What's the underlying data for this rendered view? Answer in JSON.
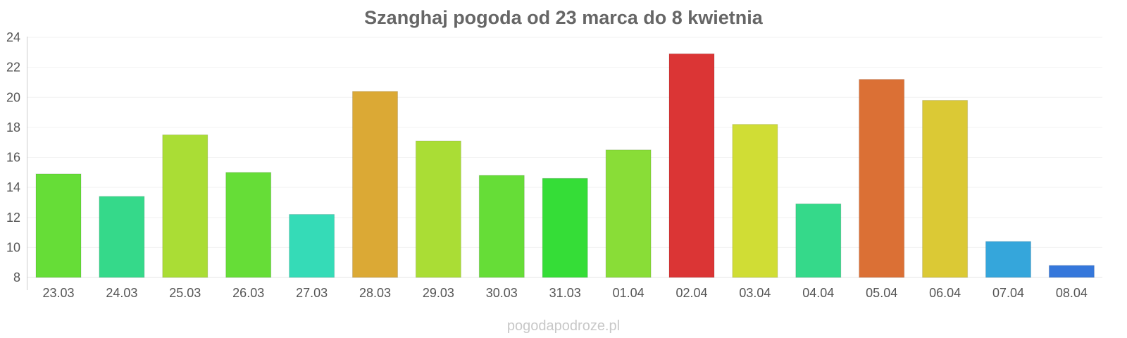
{
  "chart_data": {
    "type": "bar",
    "title": "Szanghaj pogoda od 23 marca do 8 kwietnia",
    "xlabel": "",
    "ylabel": "",
    "ylim": [
      8,
      24
    ],
    "yticks": [
      8,
      10,
      12,
      14,
      16,
      18,
      20,
      22,
      24
    ],
    "grid": true,
    "legend": "none",
    "categories": [
      "23.03",
      "24.03",
      "25.03",
      "26.03",
      "27.03",
      "28.03",
      "29.03",
      "30.03",
      "31.03",
      "01.04",
      "02.04",
      "03.04",
      "04.04",
      "05.04",
      "06.04",
      "07.04",
      "08.04"
    ],
    "values": [
      14.9,
      13.4,
      17.5,
      15.0,
      12.2,
      20.4,
      17.1,
      14.8,
      14.6,
      16.5,
      22.9,
      18.2,
      12.9,
      21.2,
      19.8,
      10.4,
      8.8
    ],
    "colors": [
      "#66dd37",
      "#35d98a",
      "#aadd35",
      "#66dd37",
      "#35dbb7",
      "#dba935",
      "#aadd35",
      "#66dd37",
      "#35dd37",
      "#89dd37",
      "#db3535",
      "#d0dd35",
      "#35d98a",
      "#db7035",
      "#dbc935",
      "#35a6db",
      "#3577db"
    ]
  },
  "watermark": "pogodapodroze.pl"
}
